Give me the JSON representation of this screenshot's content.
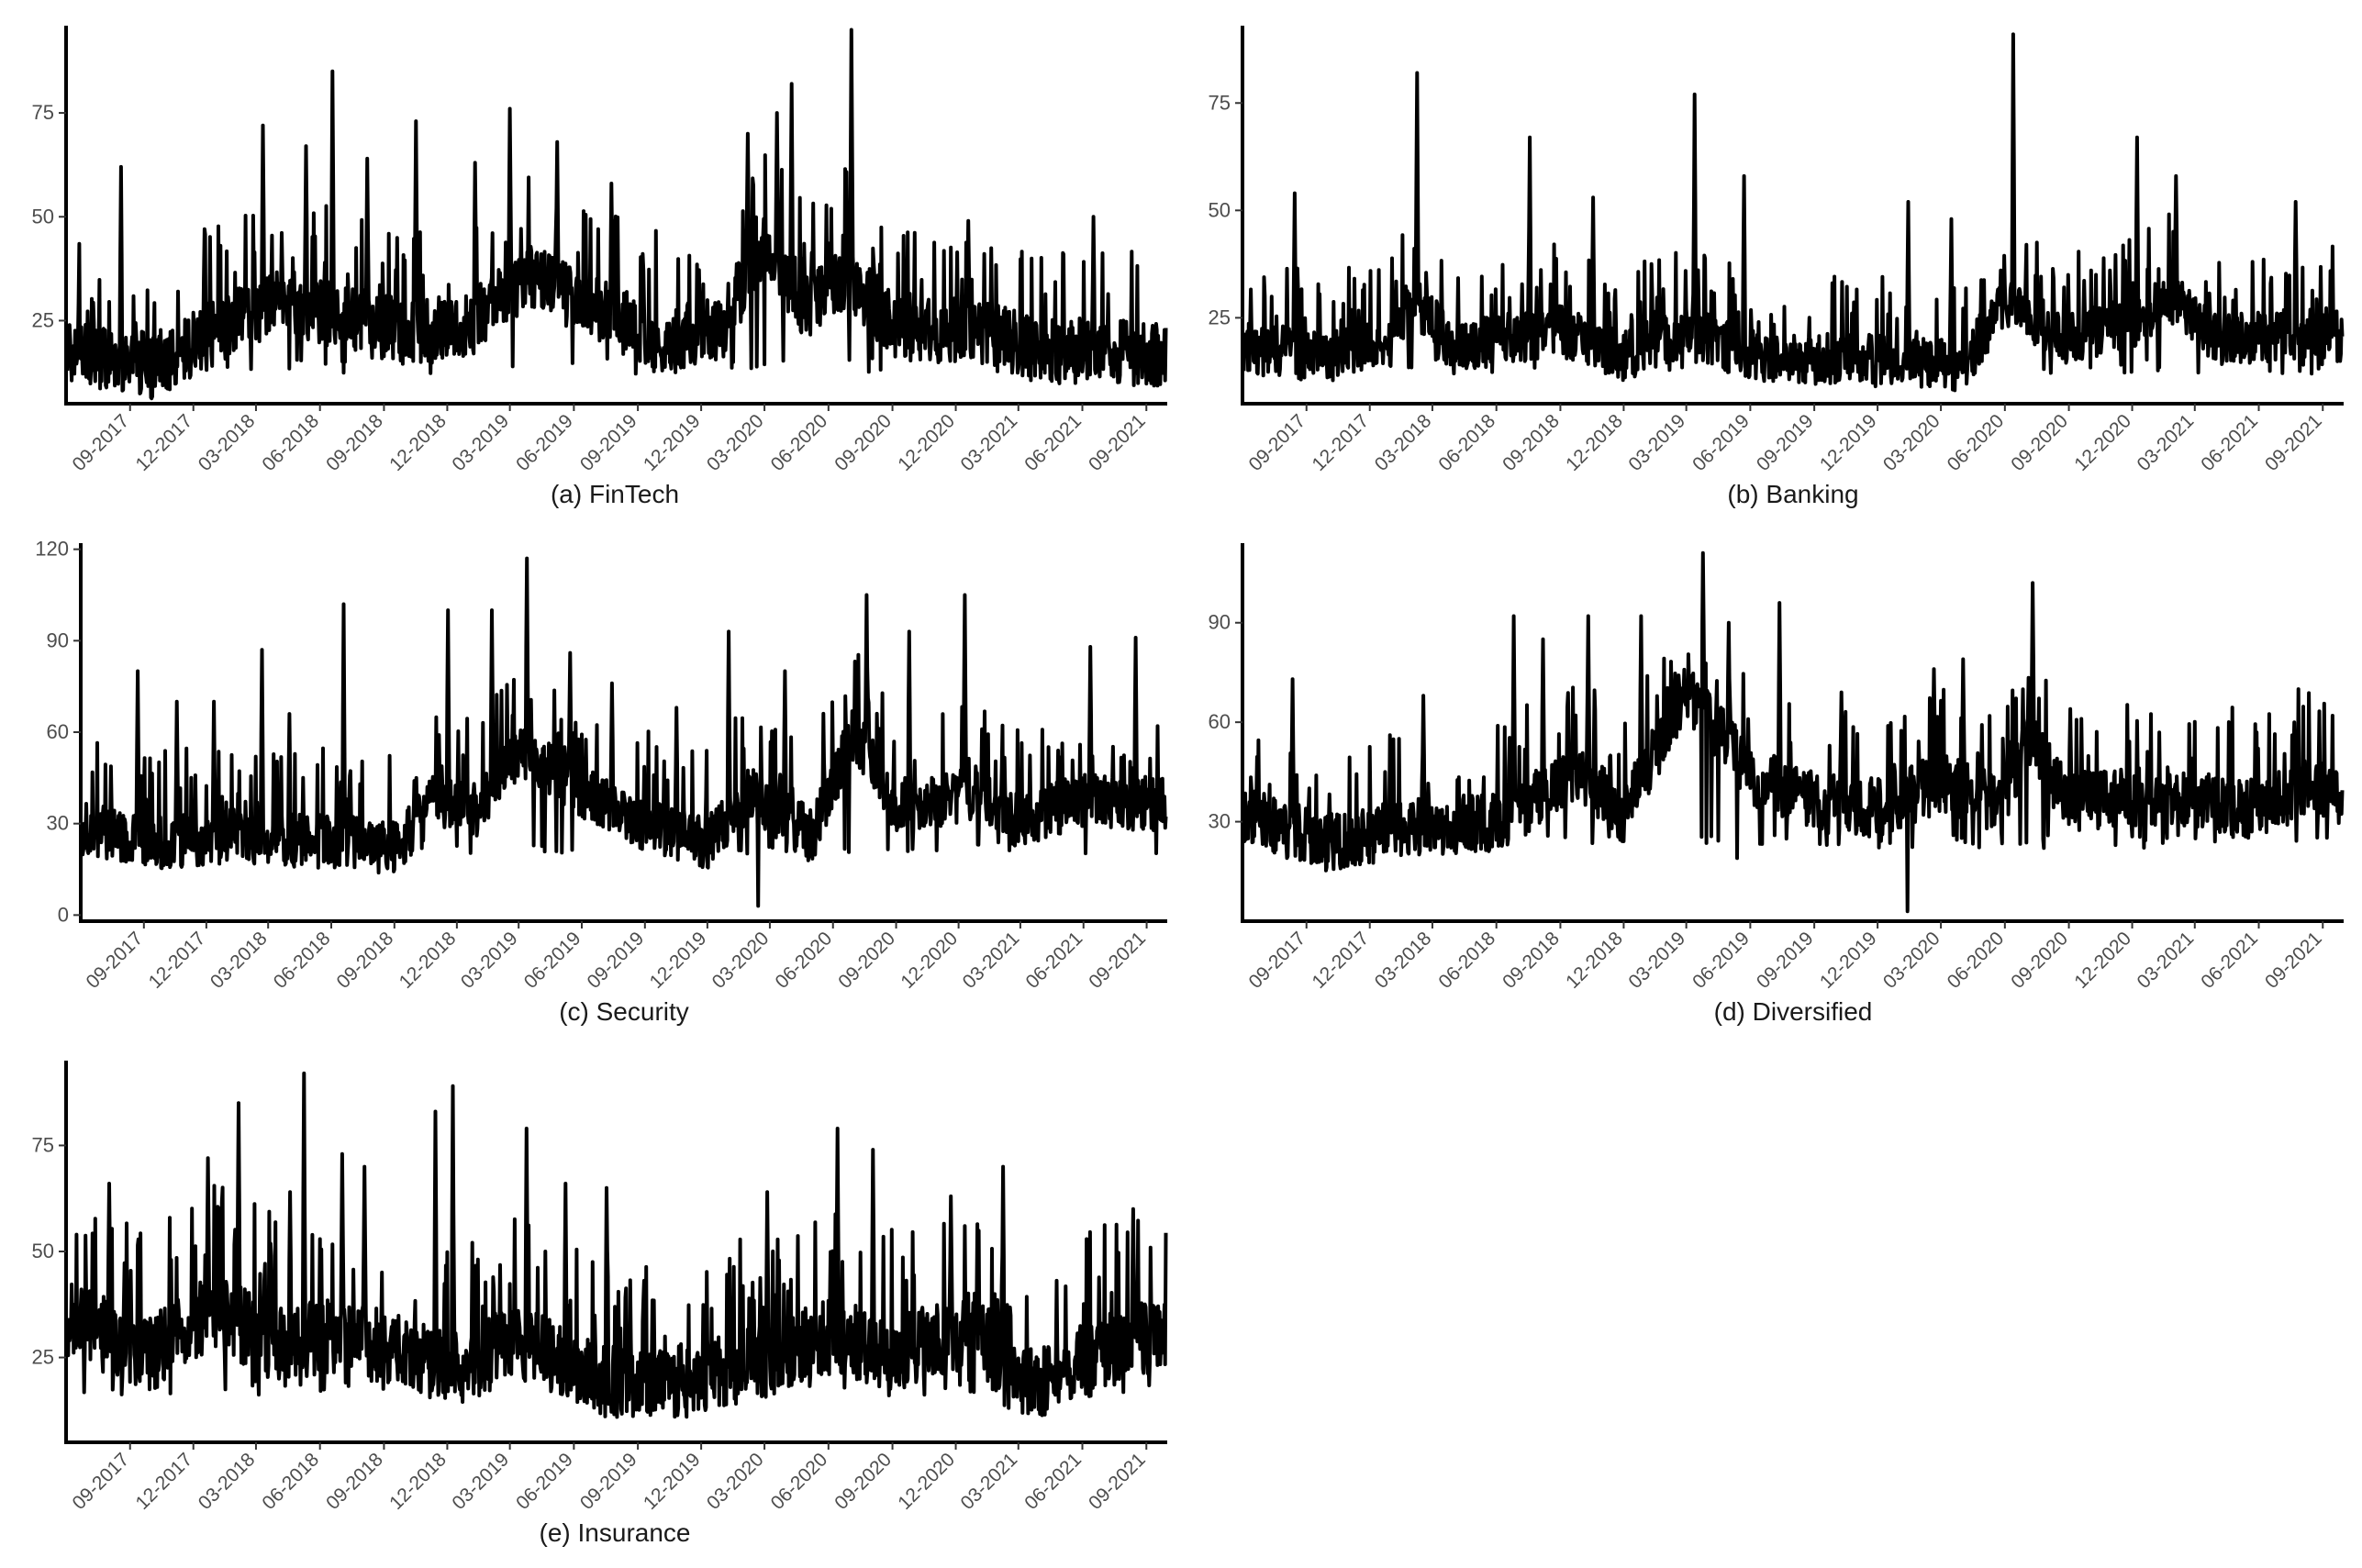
{
  "x_start": "2017-06",
  "x_end": "2021-10",
  "chart_data": [
    {
      "type": "line",
      "title": "(a) FinTech",
      "xticks": [
        {
          "date": "2017-09",
          "label": "09-2017"
        },
        {
          "date": "2017-12",
          "label": "12-2017"
        },
        {
          "date": "2018-03",
          "label": "03-2018"
        },
        {
          "date": "2018-06",
          "label": "06-2018"
        },
        {
          "date": "2018-09",
          "label": "09-2018"
        },
        {
          "date": "2018-12",
          "label": "12-2018"
        },
        {
          "date": "2019-03",
          "label": "03-2019"
        },
        {
          "date": "2019-06",
          "label": "06-2019"
        },
        {
          "date": "2019-09",
          "label": "09-2019"
        },
        {
          "date": "2019-12",
          "label": "12-2019"
        },
        {
          "date": "2020-03",
          "label": "03-2020"
        },
        {
          "date": "2020-06",
          "label": "06-2020"
        },
        {
          "date": "2020-09",
          "label": "09-2020"
        },
        {
          "date": "2020-12",
          "label": "12-2020"
        },
        {
          "date": "2021-03",
          "label": "03-2021"
        },
        {
          "date": "2021-06",
          "label": "06-2021"
        },
        {
          "date": "2021-09",
          "label": "09-2021"
        }
      ],
      "yticks": [
        25,
        50,
        75
      ],
      "ylim": [
        5,
        96
      ],
      "base": 14,
      "noise": 8,
      "envelope": [
        [
          "2017-06",
          18
        ],
        [
          "2017-10",
          14
        ],
        [
          "2018-01",
          22
        ],
        [
          "2018-04",
          30
        ],
        [
          "2018-07",
          26
        ],
        [
          "2018-10",
          22
        ],
        [
          "2019-01",
          24
        ],
        [
          "2019-04",
          36
        ],
        [
          "2019-07",
          28
        ],
        [
          "2019-10",
          20
        ],
        [
          "2020-01",
          24
        ],
        [
          "2020-03",
          44
        ],
        [
          "2020-05",
          28
        ],
        [
          "2020-07",
          36
        ],
        [
          "2020-09",
          24
        ],
        [
          "2021-01",
          22
        ],
        [
          "2021-04",
          18
        ],
        [
          "2021-10",
          17
        ]
      ],
      "spikes": [
        [
          "2017-08",
          62
        ],
        [
          "2017-12",
          47
        ],
        [
          "2018-03",
          72
        ],
        [
          "2018-05",
          67
        ],
        [
          "2018-06",
          85
        ],
        [
          "2018-08",
          64
        ],
        [
          "2018-10",
          73
        ],
        [
          "2019-01",
          63
        ],
        [
          "2019-03",
          76
        ],
        [
          "2019-05",
          68
        ],
        [
          "2019-07",
          58
        ],
        [
          "2020-02",
          70
        ],
        [
          "2020-03",
          75
        ],
        [
          "2020-04",
          82
        ],
        [
          "2020-07",
          95
        ],
        [
          "2020-12",
          49
        ],
        [
          "2021-06",
          50
        ]
      ]
    },
    {
      "type": "line",
      "title": "(b) Banking",
      "xticks": [
        {
          "date": "2017-09",
          "label": "09-2017"
        },
        {
          "date": "2017-12",
          "label": "12-2017"
        },
        {
          "date": "2018-03",
          "label": "03-2018"
        },
        {
          "date": "2018-06",
          "label": "06-2018"
        },
        {
          "date": "2018-09",
          "label": "09-2018"
        },
        {
          "date": "2018-12",
          "label": "12-2018"
        },
        {
          "date": "2019-03",
          "label": "03-2019"
        },
        {
          "date": "2019-06",
          "label": "06-2019"
        },
        {
          "date": "2019-09",
          "label": "09-2019"
        },
        {
          "date": "2019-12",
          "label": "12-2019"
        },
        {
          "date": "2020-03",
          "label": "03-2020"
        },
        {
          "date": "2020-06",
          "label": "06-2020"
        },
        {
          "date": "2020-09",
          "label": "09-2020"
        },
        {
          "date": "2020-12",
          "label": "12-2020"
        },
        {
          "date": "2021-03",
          "label": "03-2021"
        },
        {
          "date": "2021-06",
          "label": "06-2021"
        },
        {
          "date": "2021-09",
          "label": "09-2021"
        }
      ],
      "yticks": [
        25,
        50,
        75
      ],
      "ylim": [
        5,
        93
      ],
      "base": 14,
      "noise": 6,
      "envelope": [
        [
          "2017-06",
          18
        ],
        [
          "2017-10",
          16
        ],
        [
          "2018-01",
          20
        ],
        [
          "2018-02",
          30
        ],
        [
          "2018-04",
          18
        ],
        [
          "2018-09",
          22
        ],
        [
          "2018-12",
          16
        ],
        [
          "2019-03",
          22
        ],
        [
          "2019-06",
          16
        ],
        [
          "2019-12",
          15
        ],
        [
          "2020-04",
          14
        ],
        [
          "2020-06",
          28
        ],
        [
          "2020-09",
          20
        ],
        [
          "2020-12",
          24
        ],
        [
          "2021-02",
          30
        ],
        [
          "2021-04",
          20
        ],
        [
          "2021-10",
          22
        ]
      ],
      "spikes": [
        [
          "2017-08",
          54
        ],
        [
          "2018-02",
          82
        ],
        [
          "2018-07",
          67
        ],
        [
          "2018-10",
          53
        ],
        [
          "2019-03",
          77
        ],
        [
          "2019-05",
          58
        ],
        [
          "2020-01",
          52
        ],
        [
          "2020-03",
          48
        ],
        [
          "2020-06",
          91
        ],
        [
          "2020-12",
          67
        ],
        [
          "2021-02",
          58
        ],
        [
          "2021-07",
          52
        ]
      ]
    },
    {
      "type": "line",
      "title": "(c) Security",
      "xticks": [
        {
          "date": "2017-09",
          "label": "09-2017"
        },
        {
          "date": "2017-12",
          "label": "12-2017"
        },
        {
          "date": "2018-03",
          "label": "03-2018"
        },
        {
          "date": "2018-06",
          "label": "06-2018"
        },
        {
          "date": "2018-09",
          "label": "09-2018"
        },
        {
          "date": "2018-12",
          "label": "12-2018"
        },
        {
          "date": "2019-03",
          "label": "03-2019"
        },
        {
          "date": "2019-06",
          "label": "06-2019"
        },
        {
          "date": "2019-09",
          "label": "09-2019"
        },
        {
          "date": "2019-12",
          "label": "12-2019"
        },
        {
          "date": "2020-03",
          "label": "03-2020"
        },
        {
          "date": "2020-06",
          "label": "06-2020"
        },
        {
          "date": "2020-09",
          "label": "09-2020"
        },
        {
          "date": "2020-12",
          "label": "12-2020"
        },
        {
          "date": "2021-03",
          "label": "03-2021"
        },
        {
          "date": "2021-06",
          "label": "06-2021"
        },
        {
          "date": "2021-09",
          "label": "09-2021"
        }
      ],
      "yticks": [
        0,
        30,
        60,
        90,
        120
      ],
      "ylim": [
        -2,
        122
      ],
      "base": 22,
      "noise": 9,
      "envelope": [
        [
          "2017-06",
          28
        ],
        [
          "2017-10",
          24
        ],
        [
          "2018-01",
          26
        ],
        [
          "2018-06",
          24
        ],
        [
          "2018-09",
          22
        ],
        [
          "2018-11",
          38
        ],
        [
          "2019-01",
          34
        ],
        [
          "2019-03",
          54
        ],
        [
          "2019-06",
          40
        ],
        [
          "2019-09",
          30
        ],
        [
          "2019-12",
          24
        ],
        [
          "2020-02",
          40
        ],
        [
          "2020-05",
          26
        ],
        [
          "2020-07",
          60
        ],
        [
          "2020-09",
          36
        ],
        [
          "2021-01",
          40
        ],
        [
          "2021-03",
          30
        ],
        [
          "2021-06",
          38
        ],
        [
          "2021-10",
          36
        ]
      ],
      "spikes": [
        [
          "2017-08",
          80
        ],
        [
          "2017-10",
          70
        ],
        [
          "2017-12",
          70
        ],
        [
          "2018-02",
          87
        ],
        [
          "2018-04",
          66
        ],
        [
          "2018-06",
          102
        ],
        [
          "2018-11",
          100
        ],
        [
          "2019-01",
          100
        ],
        [
          "2019-03",
          117
        ],
        [
          "2019-05",
          86
        ],
        [
          "2019-07",
          76
        ],
        [
          "2019-10",
          68
        ],
        [
          "2020-01",
          93
        ],
        [
          "2020-03",
          80
        ],
        [
          "2020-07",
          105
        ],
        [
          "2020-09",
          93
        ],
        [
          "2020-12",
          105
        ],
        [
          "2021-06",
          88
        ],
        [
          "2021-08",
          91
        ]
      ],
      "dips": [
        [
          "2020-02",
          3
        ]
      ]
    },
    {
      "type": "line",
      "title": "(d) Diversified",
      "xticks": [
        {
          "date": "2017-09",
          "label": "09-2017"
        },
        {
          "date": "2017-12",
          "label": "12-2017"
        },
        {
          "date": "2018-03",
          "label": "03-2018"
        },
        {
          "date": "2018-06",
          "label": "06-2018"
        },
        {
          "date": "2018-09",
          "label": "09-2018"
        },
        {
          "date": "2018-12",
          "label": "12-2018"
        },
        {
          "date": "2019-03",
          "label": "03-2019"
        },
        {
          "date": "2019-06",
          "label": "06-2019"
        },
        {
          "date": "2019-09",
          "label": "09-2019"
        },
        {
          "date": "2019-12",
          "label": "12-2019"
        },
        {
          "date": "2020-03",
          "label": "03-2020"
        },
        {
          "date": "2020-06",
          "label": "06-2020"
        },
        {
          "date": "2020-09",
          "label": "09-2020"
        },
        {
          "date": "2020-12",
          "label": "12-2020"
        },
        {
          "date": "2021-03",
          "label": "03-2021"
        },
        {
          "date": "2021-06",
          "label": "06-2021"
        },
        {
          "date": "2021-09",
          "label": "09-2021"
        }
      ],
      "yticks": [
        30,
        60,
        90
      ],
      "ylim": [
        0,
        114
      ],
      "base": 24,
      "noise": 9,
      "envelope": [
        [
          "2017-06",
          32
        ],
        [
          "2017-10",
          24
        ],
        [
          "2018-02",
          28
        ],
        [
          "2018-06",
          30
        ],
        [
          "2018-10",
          44
        ],
        [
          "2018-12",
          32
        ],
        [
          "2019-03",
          70
        ],
        [
          "2019-06",
          44
        ],
        [
          "2019-09",
          36
        ],
        [
          "2019-12",
          34
        ],
        [
          "2020-03",
          42
        ],
        [
          "2020-06",
          34
        ],
        [
          "2020-07",
          56
        ],
        [
          "2020-09",
          36
        ],
        [
          "2021-01",
          38
        ],
        [
          "2021-06",
          34
        ],
        [
          "2021-08",
          40
        ],
        [
          "2021-10",
          38
        ]
      ],
      "spikes": [
        [
          "2017-08",
          73
        ],
        [
          "2018-02",
          68
        ],
        [
          "2018-06",
          92
        ],
        [
          "2018-08",
          85
        ],
        [
          "2018-10",
          92
        ],
        [
          "2018-12",
          92
        ],
        [
          "2019-03",
          111
        ],
        [
          "2019-05",
          90
        ],
        [
          "2019-07",
          96
        ],
        [
          "2019-10",
          69
        ],
        [
          "2020-02",
          76
        ],
        [
          "2020-04",
          79
        ],
        [
          "2020-07",
          102
        ],
        [
          "2020-09",
          64
        ],
        [
          "2021-07",
          60
        ]
      ],
      "dips": [
        [
          "2020-01",
          3
        ],
        [
          "2019-05",
          19
        ]
      ]
    },
    {
      "type": "line",
      "title": "(e) Insurance",
      "xticks": [
        {
          "date": "2017-09",
          "label": "09-2017"
        },
        {
          "date": "2017-12",
          "label": "12-2017"
        },
        {
          "date": "2018-03",
          "label": "03-2018"
        },
        {
          "date": "2018-06",
          "label": "06-2018"
        },
        {
          "date": "2018-09",
          "label": "09-2018"
        },
        {
          "date": "2018-12",
          "label": "12-2018"
        },
        {
          "date": "2019-03",
          "label": "03-2019"
        },
        {
          "date": "2019-06",
          "label": "06-2019"
        },
        {
          "date": "2019-09",
          "label": "09-2019"
        },
        {
          "date": "2019-12",
          "label": "12-2019"
        },
        {
          "date": "2020-03",
          "label": "03-2020"
        },
        {
          "date": "2020-06",
          "label": "06-2020"
        },
        {
          "date": "2020-09",
          "label": "09-2020"
        },
        {
          "date": "2020-12",
          "label": "12-2020"
        },
        {
          "date": "2021-03",
          "label": "03-2021"
        },
        {
          "date": "2021-06",
          "label": "06-2021"
        },
        {
          "date": "2021-09",
          "label": "09-2021"
        }
      ],
      "yticks": [
        25,
        50,
        75
      ],
      "ylim": [
        5,
        95
      ],
      "base": 18,
      "noise": 9,
      "envelope": [
        [
          "2017-06",
          34
        ],
        [
          "2017-10",
          26
        ],
        [
          "2018-01",
          36
        ],
        [
          "2018-04",
          28
        ],
        [
          "2018-07",
          30
        ],
        [
          "2018-10",
          26
        ],
        [
          "2019-01",
          22
        ],
        [
          "2019-03",
          30
        ],
        [
          "2019-06",
          22
        ],
        [
          "2019-09",
          18
        ],
        [
          "2019-12",
          20
        ],
        [
          "2020-03",
          24
        ],
        [
          "2020-06",
          30
        ],
        [
          "2020-09",
          26
        ],
        [
          "2021-01",
          32
        ],
        [
          "2021-03",
          18
        ],
        [
          "2021-06",
          24
        ],
        [
          "2021-10",
          32
        ]
      ],
      "spikes": [
        [
          "2017-08",
          66
        ],
        [
          "2017-12",
          72
        ],
        [
          "2018-02",
          85
        ],
        [
          "2018-04",
          64
        ],
        [
          "2018-05",
          92
        ],
        [
          "2018-07",
          73
        ],
        [
          "2018-08",
          70
        ],
        [
          "2018-11",
          83
        ],
        [
          "2018-12",
          89
        ],
        [
          "2019-03",
          79
        ],
        [
          "2019-05",
          66
        ],
        [
          "2019-07",
          65
        ],
        [
          "2020-03",
          64
        ],
        [
          "2020-06",
          79
        ],
        [
          "2020-08",
          74
        ],
        [
          "2020-11",
          63
        ],
        [
          "2021-02",
          70
        ],
        [
          "2021-08",
          60
        ],
        [
          "2021-10",
          69
        ]
      ]
    }
  ]
}
